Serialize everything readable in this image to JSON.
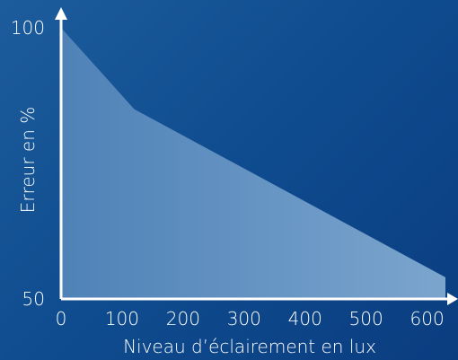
{
  "chart_data": {
    "type": "area",
    "x": [
      0,
      120,
      630
    ],
    "y": [
      100,
      85,
      54
    ],
    "xlabel": "Niveau d’éclairement en lux",
    "ylabel": "Erreur en %",
    "xlim": [
      0,
      630
    ],
    "ylim": [
      50,
      100
    ],
    "x_ticks": [
      "0",
      "100",
      "200",
      "300",
      "400",
      "500",
      "600"
    ],
    "y_ticks": [
      "100",
      "50"
    ],
    "grid": false,
    "colors": {
      "background_start": "#1d5c9c",
      "background_end": "#0a3d80",
      "area_left": "#4f82b8",
      "area_right": "#7ba5cd",
      "axis": "#ffffff"
    }
  }
}
